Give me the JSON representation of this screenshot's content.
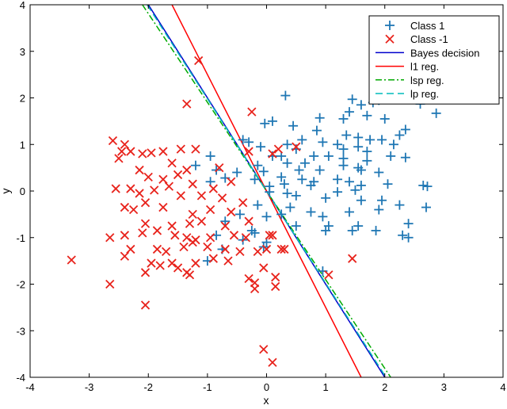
{
  "chart_data": {
    "type": "scatter",
    "title": "",
    "xlabel": "x",
    "ylabel": "y",
    "xlim": [
      -4,
      4
    ],
    "ylim": [
      -4,
      4
    ],
    "xticks": [
      "-4",
      "-3",
      "-2",
      "-1",
      "0",
      "1",
      "2",
      "3",
      "4"
    ],
    "yticks": [
      "-4",
      "-3",
      "-2",
      "-1",
      "0",
      "1",
      "2",
      "3",
      "4"
    ],
    "grid": false,
    "legend_position": "top-right",
    "series": [
      {
        "name": "Class 1",
        "kind": "points",
        "marker": "plus",
        "color": "#1f77b4",
        "points": [
          [
            0.32,
            2.05
          ],
          [
            1.45,
            1.97
          ],
          [
            1.6,
            1.85
          ],
          [
            1.8,
            1.9
          ],
          [
            1.9,
            1.95
          ],
          [
            2.6,
            1.87
          ],
          [
            2.87,
            1.67
          ],
          [
            1.4,
            1.7
          ],
          [
            1.7,
            1.62
          ],
          [
            0.9,
            1.57
          ],
          [
            1.3,
            1.55
          ],
          [
            2.0,
            1.55
          ],
          [
            -0.03,
            1.45
          ],
          [
            0.1,
            1.5
          ],
          [
            0.45,
            1.4
          ],
          [
            0.85,
            1.3
          ],
          [
            1.35,
            1.2
          ],
          [
            2.35,
            1.32
          ],
          [
            2.25,
            1.2
          ],
          [
            -0.4,
            1.1
          ],
          [
            -0.3,
            1.05
          ],
          [
            0.6,
            1.1
          ],
          [
            0.95,
            1.05
          ],
          [
            1.2,
            1.0
          ],
          [
            1.55,
            1.15
          ],
          [
            1.75,
            1.1
          ],
          [
            1.95,
            1.1
          ],
          [
            2.15,
            1.0
          ],
          [
            0.35,
            1.0
          ],
          [
            -0.1,
            0.95
          ],
          [
            0.5,
            0.9
          ],
          [
            1.3,
            0.9
          ],
          [
            1.55,
            0.95
          ],
          [
            1.7,
            0.85
          ],
          [
            2.1,
            0.75
          ],
          [
            2.35,
            0.72
          ],
          [
            0.1,
            0.75
          ],
          [
            0.25,
            0.75
          ],
          [
            0.8,
            0.75
          ],
          [
            1.05,
            0.75
          ],
          [
            1.3,
            0.7
          ],
          [
            1.7,
            0.65
          ],
          [
            -0.95,
            0.75
          ],
          [
            -0.15,
            0.55
          ],
          [
            0.35,
            0.6
          ],
          [
            0.65,
            0.6
          ],
          [
            1.3,
            0.55
          ],
          [
            1.55,
            0.5
          ],
          [
            -1.2,
            0.55
          ],
          [
            -0.85,
            0.45
          ],
          [
            -0.5,
            0.4
          ],
          [
            -0.05,
            0.42
          ],
          [
            0.55,
            0.45
          ],
          [
            0.9,
            0.45
          ],
          [
            1.6,
            0.45
          ],
          [
            1.9,
            0.4
          ],
          [
            -0.7,
            0.28
          ],
          [
            -0.2,
            0.25
          ],
          [
            0.25,
            0.3
          ],
          [
            0.6,
            0.25
          ],
          [
            0.8,
            0.2
          ],
          [
            1.2,
            0.25
          ],
          [
            1.4,
            0.2
          ],
          [
            -0.95,
            0.2
          ],
          [
            0.05,
            0.1
          ],
          [
            0.3,
            0.15
          ],
          [
            0.75,
            0.12
          ],
          [
            1.6,
            0.12
          ],
          [
            2.05,
            0.15
          ],
          [
            2.65,
            0.12
          ],
          [
            2.72,
            0.1
          ],
          [
            0.05,
            -0.02
          ],
          [
            0.35,
            -0.05
          ],
          [
            1.2,
            -0.02
          ],
          [
            1.5,
            0.02
          ],
          [
            0.5,
            -0.1
          ],
          [
            1.0,
            -0.15
          ],
          [
            1.6,
            -0.2
          ],
          [
            1.95,
            -0.2
          ],
          [
            2.25,
            -0.3
          ],
          [
            2.7,
            -0.35
          ],
          [
            0.4,
            -0.35
          ],
          [
            0.75,
            -0.45
          ],
          [
            0.95,
            -0.55
          ],
          [
            1.4,
            -0.45
          ],
          [
            1.9,
            -0.4
          ],
          [
            -0.15,
            -0.3
          ],
          [
            0.25,
            -0.5
          ],
          [
            1.05,
            -0.75
          ],
          [
            1.55,
            -0.75
          ],
          [
            2.4,
            -0.7
          ],
          [
            -0.7,
            -0.65
          ],
          [
            -0.45,
            -0.5
          ],
          [
            0.0,
            -0.55
          ],
          [
            0.5,
            -0.75
          ],
          [
            1.0,
            -0.85
          ],
          [
            1.45,
            -0.85
          ],
          [
            1.85,
            -0.85
          ],
          [
            2.3,
            -0.95
          ],
          [
            2.4,
            -1.0
          ],
          [
            -0.25,
            -0.85
          ],
          [
            -0.85,
            -0.95
          ],
          [
            -0.75,
            -1.25
          ],
          [
            -0.4,
            -1.05
          ],
          [
            0.0,
            -1.1
          ],
          [
            -0.2,
            -0.9
          ],
          [
            -0.05,
            -1.2
          ],
          [
            -1.0,
            -1.5
          ],
          [
            0.95,
            -1.72
          ]
        ]
      },
      {
        "name": "Class -1",
        "kind": "points",
        "marker": "x",
        "color": "#e8231c",
        "points": [
          [
            -1.15,
            2.8
          ],
          [
            -1.35,
            1.87
          ],
          [
            -0.25,
            1.7
          ],
          [
            -2.6,
            1.08
          ],
          [
            -2.4,
            1.0
          ],
          [
            -2.45,
            0.85
          ],
          [
            -2.5,
            0.7
          ],
          [
            -1.95,
            0.82
          ],
          [
            -1.75,
            0.85
          ],
          [
            -1.45,
            0.9
          ],
          [
            -1.2,
            0.9
          ],
          [
            -2.3,
            0.85
          ],
          [
            -2.1,
            0.8
          ],
          [
            -1.6,
            0.6
          ],
          [
            -1.35,
            0.45
          ],
          [
            -0.8,
            0.5
          ],
          [
            -0.3,
            0.85
          ],
          [
            0.1,
            0.8
          ],
          [
            0.2,
            0.9
          ],
          [
            0.5,
            0.95
          ],
          [
            -2.15,
            0.45
          ],
          [
            -2.0,
            0.3
          ],
          [
            -1.75,
            0.25
          ],
          [
            -1.5,
            0.35
          ],
          [
            -1.25,
            0.15
          ],
          [
            -0.9,
            0.05
          ],
          [
            -0.6,
            0.2
          ],
          [
            -2.55,
            0.05
          ],
          [
            -2.3,
            0.05
          ],
          [
            -2.15,
            -0.05
          ],
          [
            -1.9,
            0.02
          ],
          [
            -1.65,
            0.1
          ],
          [
            -1.45,
            -0.1
          ],
          [
            -1.1,
            -0.1
          ],
          [
            -0.75,
            -0.15
          ],
          [
            -0.4,
            -0.25
          ],
          [
            -2.4,
            -0.35
          ],
          [
            -2.25,
            -0.4
          ],
          [
            -2.05,
            -0.25
          ],
          [
            -1.75,
            -0.35
          ],
          [
            -1.25,
            -0.5
          ],
          [
            -0.95,
            -0.4
          ],
          [
            -0.6,
            -0.45
          ],
          [
            -2.05,
            -0.7
          ],
          [
            -1.6,
            -0.75
          ],
          [
            -1.3,
            -0.7
          ],
          [
            -1.1,
            -0.65
          ],
          [
            -0.7,
            -0.75
          ],
          [
            -0.3,
            -0.65
          ],
          [
            -2.65,
            -1.0
          ],
          [
            -2.4,
            -0.95
          ],
          [
            -2.1,
            -0.9
          ],
          [
            -1.85,
            -0.85
          ],
          [
            -1.55,
            -0.95
          ],
          [
            -1.35,
            -1.0
          ],
          [
            -1.2,
            -1.05
          ],
          [
            -0.95,
            -1.0
          ],
          [
            -0.55,
            -0.95
          ],
          [
            -0.35,
            -1.0
          ],
          [
            0.05,
            -0.95
          ],
          [
            -2.3,
            -1.25
          ],
          [
            -2.4,
            -1.4
          ],
          [
            -1.85,
            -1.25
          ],
          [
            -1.7,
            -1.3
          ],
          [
            -1.4,
            -1.2
          ],
          [
            -1.25,
            -1.1
          ],
          [
            -1.0,
            -1.2
          ],
          [
            -0.7,
            -1.25
          ],
          [
            -0.45,
            -1.3
          ],
          [
            -0.15,
            -1.3
          ],
          [
            0.0,
            -1.25
          ],
          [
            0.25,
            -1.25
          ],
          [
            0.3,
            -1.25
          ],
          [
            -1.95,
            -1.55
          ],
          [
            -1.8,
            -1.6
          ],
          [
            -1.6,
            -1.55
          ],
          [
            -1.5,
            -1.65
          ],
          [
            -1.3,
            -1.8
          ],
          [
            -1.2,
            -1.55
          ],
          [
            -0.9,
            -1.45
          ],
          [
            -0.65,
            -1.5
          ],
          [
            -2.05,
            -1.75
          ],
          [
            -1.35,
            -1.75
          ],
          [
            -0.3,
            -1.88
          ],
          [
            -0.2,
            -1.97
          ],
          [
            0.15,
            -1.85
          ],
          [
            0.15,
            -2.05
          ],
          [
            -0.2,
            -2.1
          ],
          [
            -3.3,
            -1.48
          ],
          [
            -2.65,
            -2.0
          ],
          [
            -2.05,
            -2.45
          ],
          [
            1.45,
            -1.45
          ],
          [
            1.05,
            -1.8
          ],
          [
            -0.05,
            -3.4
          ],
          [
            0.1,
            -3.68
          ],
          [
            0.1,
            -0.95
          ],
          [
            -0.05,
            -1.65
          ]
        ]
      },
      {
        "name": "Bayes decision",
        "kind": "line",
        "dash": "solid",
        "color": "#0000cc",
        "points": [
          [
            -2.0,
            4.0
          ],
          [
            2.0,
            -4.0
          ]
        ]
      },
      {
        "name": "l1 reg.",
        "kind": "line",
        "dash": "solid",
        "color": "#ff0000",
        "points": [
          [
            -1.6,
            4.0
          ],
          [
            1.6,
            -4.0
          ]
        ]
      },
      {
        "name": "lsp reg.",
        "kind": "line",
        "dash": "dashdot",
        "color": "#00aa00",
        "points": [
          [
            -2.1,
            4.0
          ],
          [
            2.1,
            -4.0
          ]
        ]
      },
      {
        "name": "lp reg.",
        "kind": "line",
        "dash": "dashed",
        "color": "#00bbbb",
        "points": [
          [
            -2.02,
            4.0
          ],
          [
            2.02,
            -4.0
          ]
        ]
      }
    ]
  }
}
